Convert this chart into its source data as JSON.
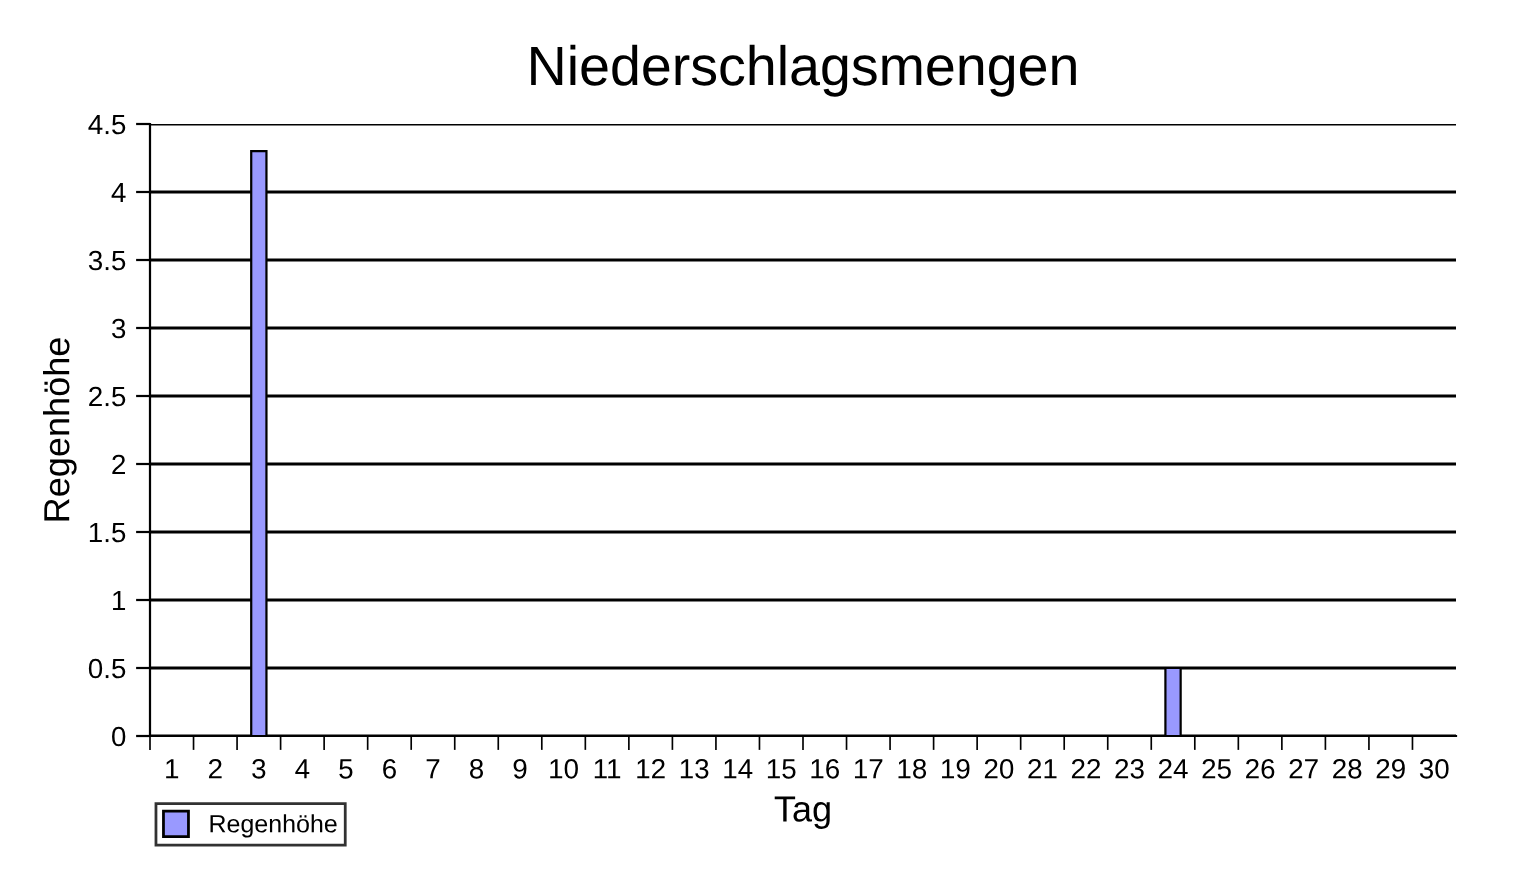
{
  "chart_data": {
    "type": "bar",
    "title": "Niederschlagsmengen",
    "xlabel": "Tag",
    "ylabel": "Regenhöhe",
    "categories": [
      "1",
      "2",
      "3",
      "4",
      "5",
      "6",
      "7",
      "8",
      "9",
      "10",
      "11",
      "12",
      "13",
      "14",
      "15",
      "16",
      "17",
      "18",
      "19",
      "20",
      "21",
      "22",
      "23",
      "24",
      "25",
      "26",
      "27",
      "28",
      "29",
      "30"
    ],
    "series": [
      {
        "name": "Regenhöhe",
        "color": "#9999ff",
        "values": [
          0,
          0,
          4.3,
          0,
          0,
          0,
          0,
          0,
          0,
          0,
          0,
          0,
          0,
          0,
          0,
          0,
          0,
          0,
          0,
          0,
          0,
          0,
          0,
          0.5,
          0,
          0,
          0,
          0,
          0,
          0
        ]
      }
    ],
    "ylim": [
      0,
      4.5
    ],
    "yticks": [
      0,
      0.5,
      1,
      1.5,
      2,
      2.5,
      3,
      3.5,
      4,
      4.5
    ],
    "grid": "y",
    "legend": "bottom left"
  }
}
